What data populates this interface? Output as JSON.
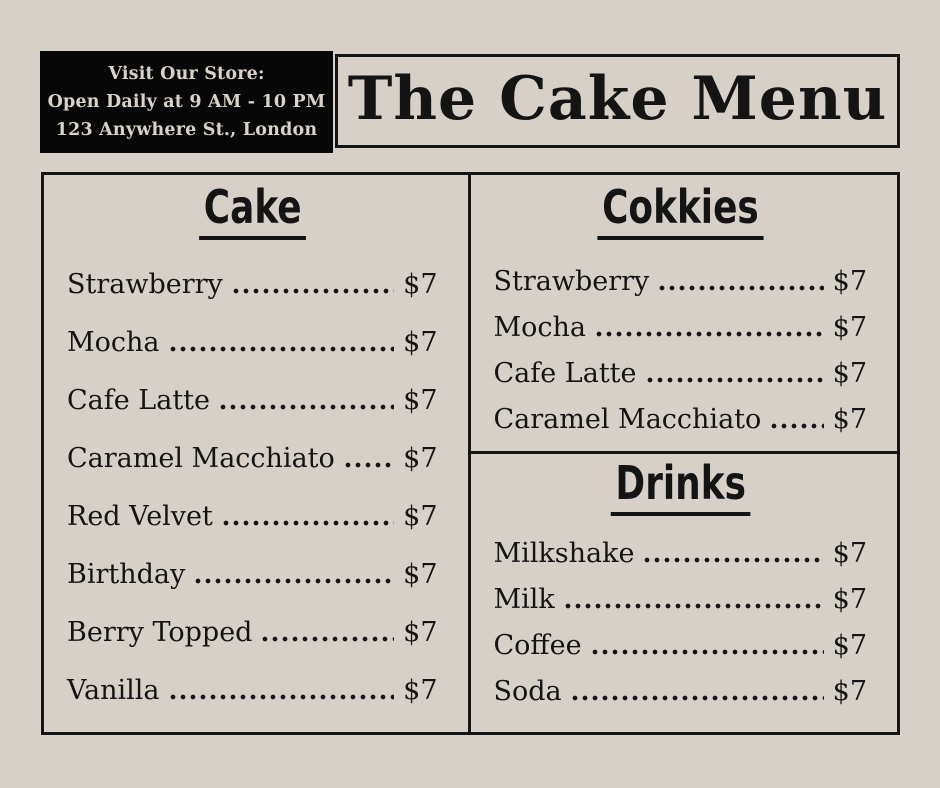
{
  "colors": {
    "background": "#d7d0c8",
    "ink": "#141414",
    "store_box_bg": "#070707",
    "store_box_text": "#d9d2c9"
  },
  "header": {
    "store_info_lines": [
      "Visit Our Store:",
      "Open Daily at 9 AM - 10 PM",
      "123 Anywhere St., London"
    ],
    "title": "The Cake Menu"
  },
  "menu": {
    "sections": [
      {
        "title": "Cake",
        "items": [
          {
            "name": "Strawberry",
            "price": "$7"
          },
          {
            "name": "Mocha",
            "price": "$7"
          },
          {
            "name": "Cafe Latte",
            "price": "$7"
          },
          {
            "name": "Caramel Macchiato",
            "price": "$7"
          },
          {
            "name": "Red Velvet",
            "price": "$7"
          },
          {
            "name": "Birthday",
            "price": "$7"
          },
          {
            "name": "Berry Topped",
            "price": "$7"
          },
          {
            "name": "Vanilla",
            "price": "$7"
          }
        ]
      },
      {
        "title": "Cokkies",
        "items": [
          {
            "name": "Strawberry",
            "price": "$7"
          },
          {
            "name": "Mocha",
            "price": "$7"
          },
          {
            "name": "Cafe Latte",
            "price": "$7"
          },
          {
            "name": "Caramel Macchiato",
            "price": "$7"
          }
        ]
      },
      {
        "title": "Drinks",
        "items": [
          {
            "name": "Milkshake",
            "price": "$7"
          },
          {
            "name": "Milk",
            "price": "$7"
          },
          {
            "name": "Coffee",
            "price": "$7"
          },
          {
            "name": "Soda",
            "price": "$7"
          }
        ]
      }
    ]
  }
}
